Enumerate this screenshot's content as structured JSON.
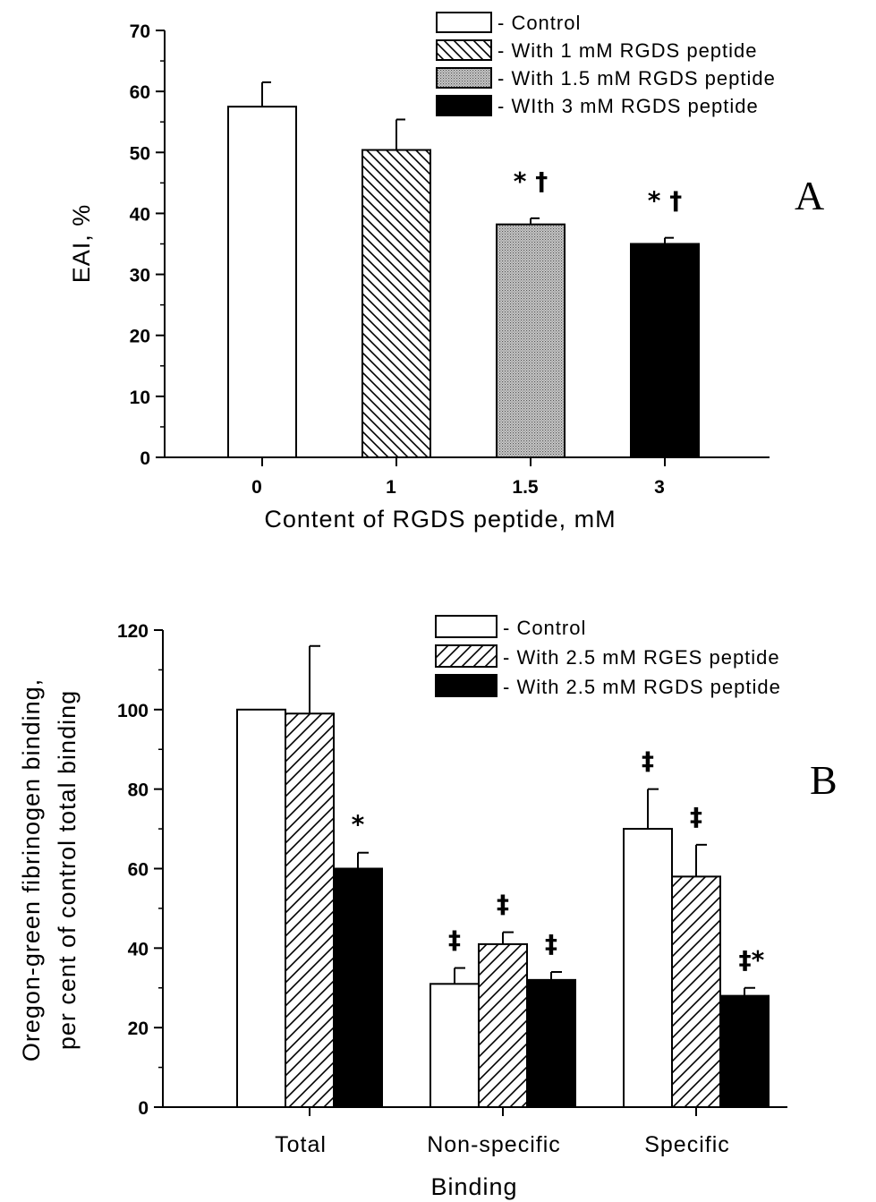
{
  "chart_data": [
    {
      "type": "bar",
      "panel_letter": "A",
      "xlabel": "Content of RGDS peptide, mM",
      "ylabel": "EAI, %",
      "ylim": [
        0,
        70
      ],
      "yticks": [
        "0",
        "10",
        "20",
        "30",
        "40",
        "50",
        "60",
        "70"
      ],
      "categories": [
        "0",
        "1",
        "1.5",
        "3"
      ],
      "bars": [
        {
          "category": "0",
          "value": 57.5,
          "error": 4.0,
          "pattern": "white",
          "annotation": ""
        },
        {
          "category": "1",
          "value": 50.4,
          "error": 5.0,
          "pattern": "diag-dense",
          "annotation": ""
        },
        {
          "category": "1.5",
          "value": 38.2,
          "error": 1.0,
          "pattern": "dots",
          "annotation": "* †"
        },
        {
          "category": "3",
          "value": 35.0,
          "error": 1.0,
          "pattern": "black",
          "annotation": "* †"
        }
      ],
      "legend": [
        {
          "label": "- Control",
          "pattern": "white"
        },
        {
          "label": "- With 1 mM RGDS peptide",
          "pattern": "diag-dense"
        },
        {
          "label": "- With 1.5 mM RGDS peptide",
          "pattern": "dots"
        },
        {
          "label": "- WIth 3 mM RGDS peptide",
          "pattern": "black"
        }
      ],
      "legend_position": "top-right",
      "grid": false
    },
    {
      "type": "bar",
      "panel_letter": "B",
      "xlabel": "Binding",
      "ylabel_line1": "Oregon-green fibrinogen binding,",
      "ylabel_line2": "per cent of control total binding",
      "ylim": [
        0,
        120
      ],
      "yticks": [
        "0",
        "20",
        "40",
        "60",
        "80",
        "100",
        "120"
      ],
      "categories": [
        "Total",
        "Non-specific",
        "Specific"
      ],
      "series": [
        {
          "name": "- Control",
          "pattern": "white",
          "values": [
            100,
            31,
            70
          ],
          "errors": [
            0,
            4,
            10
          ],
          "annotations": [
            "",
            "‡",
            "‡"
          ]
        },
        {
          "name": "- With 2.5 mM RGES peptide",
          "pattern": "diag-sparse",
          "values": [
            99,
            41,
            58
          ],
          "errors": [
            17,
            3,
            8
          ],
          "annotations": [
            "",
            "‡",
            "‡"
          ]
        },
        {
          "name": "- With 2.5 mM RGDS peptide",
          "pattern": "black",
          "values": [
            60,
            32,
            28
          ],
          "errors": [
            4,
            2,
            2
          ],
          "annotations": [
            "*",
            "‡",
            "‡*"
          ]
        }
      ],
      "legend_position": "top-right",
      "grid": false
    }
  ]
}
